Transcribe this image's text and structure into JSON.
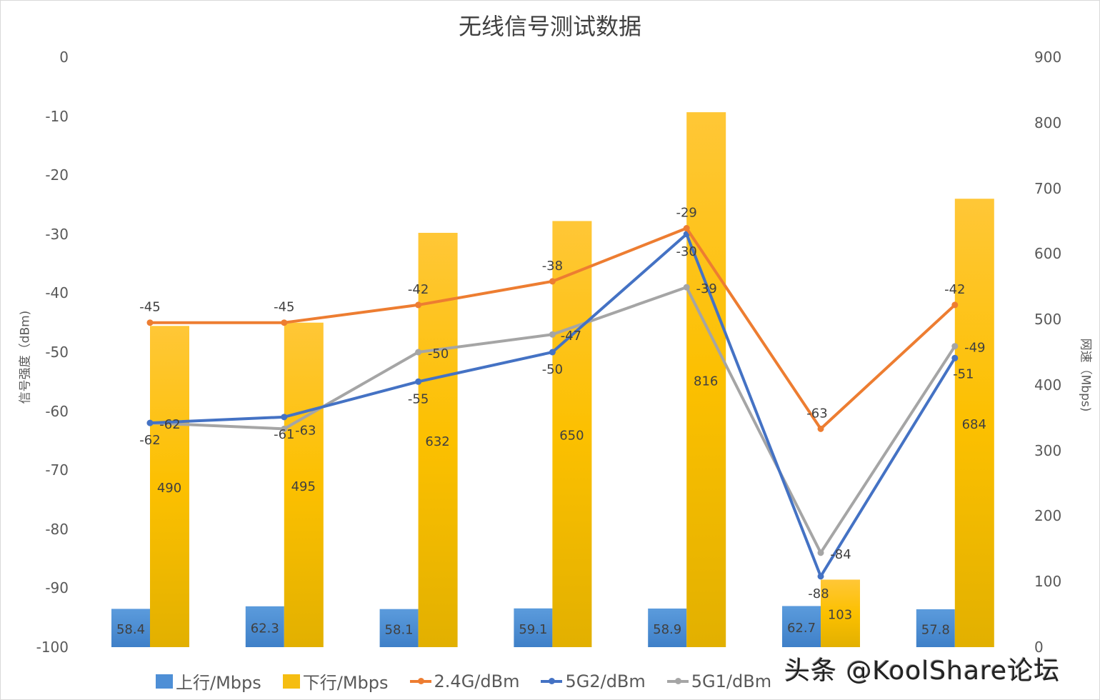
{
  "chart_data": {
    "type": "bar+line",
    "title": "无线信号测试数据",
    "categories": [
      "",
      "",
      "",
      "",
      "",
      "",
      ""
    ],
    "left_axis": {
      "label": "信号强度（dBm)",
      "ylim": [
        -100,
        0
      ],
      "ticks": [
        "0",
        "-10",
        "-20",
        "-30",
        "-40",
        "-50",
        "-60",
        "-70",
        "-80",
        "-90",
        "-100"
      ]
    },
    "right_axis": {
      "label": "网速（Mbps)",
      "ylim": [
        0,
        900
      ],
      "ticks": [
        "900",
        "800",
        "700",
        "600",
        "500",
        "400",
        "300",
        "200",
        "100",
        "0"
      ]
    },
    "bar_series": [
      {
        "name": "上行/Mbps",
        "color": "#4e8fd6",
        "axis": "right",
        "values": [
          58.4,
          62.3,
          58.1,
          59.1,
          58.9,
          62.7,
          57.8
        ]
      },
      {
        "name": "下行/Mbps",
        "color": "#f5bd12",
        "axis": "right",
        "values": [
          490,
          495,
          632,
          650,
          816,
          103,
          684
        ]
      }
    ],
    "line_series": [
      {
        "name": "2.4G/dBm",
        "color": "#ed7d31",
        "axis": "left",
        "values": [
          -45,
          -45,
          -42,
          -38,
          -29,
          -63,
          -42
        ]
      },
      {
        "name": "5G2/dBm",
        "color": "#4472c4",
        "axis": "left",
        "values": [
          -62,
          -61,
          -55,
          -50,
          -30,
          -88,
          -51
        ]
      },
      {
        "name": "5G1/dBm",
        "color": "#a5a5a5",
        "axis": "left",
        "values": [
          -62,
          -63,
          -50,
          -47,
          -39,
          -84,
          -49
        ]
      }
    ],
    "legend_position": "bottom",
    "grid": false
  },
  "legend": {
    "items": [
      {
        "label": "上行/Mbps",
        "kind": "bar",
        "color": "#4e8fd6"
      },
      {
        "label": "下行/Mbps",
        "kind": "bar",
        "color": "#f5bd12"
      },
      {
        "label": "2.4G/dBm",
        "kind": "line",
        "color": "#ed7d31"
      },
      {
        "label": "5G2/dBm",
        "kind": "line",
        "color": "#4472c4"
      },
      {
        "label": "5G1/dBm",
        "kind": "line",
        "color": "#a5a5a5"
      }
    ]
  },
  "watermark": "头条 @KoolShare论坛"
}
